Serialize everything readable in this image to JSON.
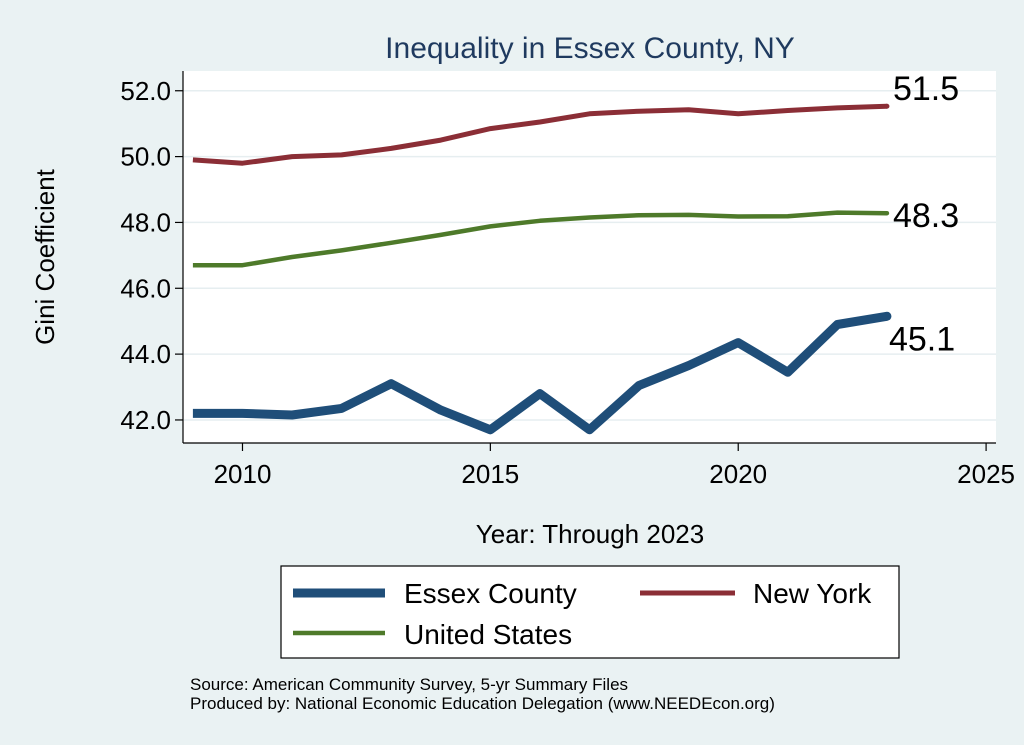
{
  "chart_data": {
    "type": "line",
    "title": "Inequality in Essex County, NY",
    "xlabel": "Year: Through 2023",
    "ylabel": "Gini Coefficient",
    "xlim": [
      2008.8,
      2025.2
    ],
    "ylim": [
      41.3,
      52.6
    ],
    "x_ticks": [
      2010,
      2015,
      2020,
      2025
    ],
    "y_ticks": [
      42,
      44,
      46,
      48,
      50,
      52
    ],
    "y_tick_labels": [
      "42.0",
      "44.0",
      "46.0",
      "48.0",
      "50.0",
      "52.0"
    ],
    "grid": true,
    "x": [
      2009,
      2010,
      2011,
      2012,
      2013,
      2014,
      2015,
      2016,
      2017,
      2018,
      2019,
      2020,
      2021,
      2022,
      2023
    ],
    "series": [
      {
        "name": "Essex County",
        "color": "#1f4e79",
        "values": [
          42.2,
          42.2,
          42.15,
          42.35,
          43.1,
          42.3,
          41.7,
          42.8,
          41.7,
          43.05,
          43.65,
          44.35,
          43.45,
          44.9,
          45.15
        ],
        "end_label": "45.1"
      },
      {
        "name": "New York",
        "color": "#8b2e36",
        "values": [
          49.9,
          49.8,
          50.0,
          50.05,
          50.25,
          50.5,
          50.85,
          51.05,
          51.3,
          51.38,
          51.42,
          51.3,
          51.4,
          51.48,
          51.53
        ],
        "end_label": "51.5"
      },
      {
        "name": "United States",
        "color": "#4e7a2a",
        "values": [
          46.7,
          46.7,
          46.95,
          47.15,
          47.38,
          47.62,
          47.88,
          48.05,
          48.15,
          48.22,
          48.23,
          48.18,
          48.19,
          48.3,
          48.28
        ],
        "end_label": "48.3"
      }
    ],
    "legend": {
      "placement": "bottom",
      "entries": [
        "Essex County",
        "New York",
        "United States"
      ]
    },
    "notes": [
      "Source: American Community Survey, 5-yr Summary Files",
      "Produced by: National Economic Education Delegation (www.NEEDEcon.org)"
    ]
  }
}
